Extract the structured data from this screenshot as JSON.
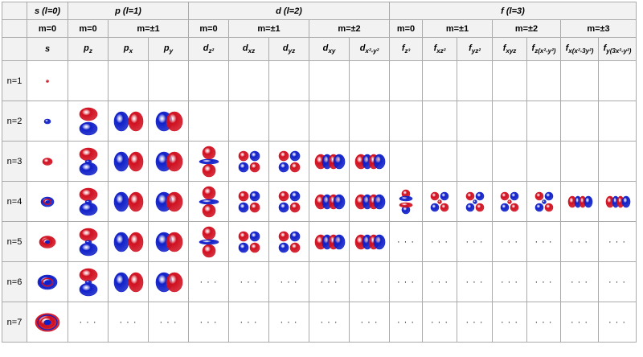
{
  "headers": {
    "families": [
      {
        "letter": "s",
        "l": "(l=0)"
      },
      {
        "letter": "p",
        "l": "(l=1)"
      },
      {
        "letter": "d",
        "l": "(l=2)"
      },
      {
        "letter": "f",
        "l": "(l=3)"
      }
    ],
    "m_values": [
      "m=0",
      "m=0",
      "m=±1",
      "m=0",
      "m=±1",
      "m=±2",
      "m=0",
      "m=±1",
      "m=±2",
      "m=±3"
    ],
    "orbitals": [
      {
        "base": "s",
        "sub": ""
      },
      {
        "base": "p",
        "sub": "z"
      },
      {
        "base": "p",
        "sub": "x"
      },
      {
        "base": "p",
        "sub": "y"
      },
      {
        "base": "d",
        "sub": "z²"
      },
      {
        "base": "d",
        "sub": "xz"
      },
      {
        "base": "d",
        "sub": "yz"
      },
      {
        "base": "d",
        "sub": "xy"
      },
      {
        "base": "d",
        "sub": "x²-y²"
      },
      {
        "base": "f",
        "sub": "z³"
      },
      {
        "base": "f",
        "sub": "xz²"
      },
      {
        "base": "f",
        "sub": "yz²"
      },
      {
        "base": "f",
        "sub": "xyz"
      },
      {
        "base": "f",
        "sub": "z(x²-y²)"
      },
      {
        "base": "f",
        "sub": "x(x²-3y²)"
      },
      {
        "base": "f",
        "sub": "y(3x²-y²)"
      }
    ]
  },
  "rows": [
    {
      "label": "n=1",
      "cells": [
        "s",
        "",
        "",
        "",
        "",
        "",
        "",
        "",
        "",
        "",
        "",
        "",
        "",
        "",
        "",
        ""
      ]
    },
    {
      "label": "n=2",
      "cells": [
        "s",
        "pz",
        "px",
        "py",
        "",
        "",
        "",
        "",
        "",
        "",
        "",
        "",
        "",
        "",
        "",
        ""
      ]
    },
    {
      "label": "n=3",
      "cells": [
        "s",
        "pz",
        "px",
        "py",
        "dz2",
        "dxz",
        "dyz",
        "dxy",
        "dx2y2",
        "",
        "",
        "",
        "",
        "",
        "",
        ""
      ]
    },
    {
      "label": "n=4",
      "cells": [
        "s",
        "pz",
        "px",
        "py",
        "dz2",
        "dxz",
        "dyz",
        "dxy",
        "dx2y2",
        "fz3",
        "fxz2",
        "fyz2",
        "fxyz",
        "fzx2y2",
        "fx",
        "fy"
      ]
    },
    {
      "label": "n=5",
      "cells": [
        "s",
        "pz",
        "px",
        "py",
        "dz2",
        "dxz",
        "dyz",
        "dxy",
        "dx2y2",
        "...",
        "...",
        "...",
        "...",
        "...",
        "...",
        "..."
      ]
    },
    {
      "label": "n=6",
      "cells": [
        "s",
        "pz",
        "px",
        "py",
        "...",
        "...",
        "...",
        "...",
        "...",
        "...",
        "...",
        "...",
        "...",
        "...",
        "...",
        "..."
      ]
    },
    {
      "label": "n=7",
      "cells": [
        "s",
        "...",
        "...",
        "...",
        "...",
        "...",
        "...",
        "...",
        "...",
        "...",
        "...",
        "...",
        "...",
        "...",
        "...",
        "..."
      ]
    }
  ],
  "colors": {
    "positive": "#d01020",
    "negative": "#1020c8",
    "header_bg": "#f2f2f2",
    "border": "#aaaaaa"
  },
  "ellipsis": "· · ·"
}
